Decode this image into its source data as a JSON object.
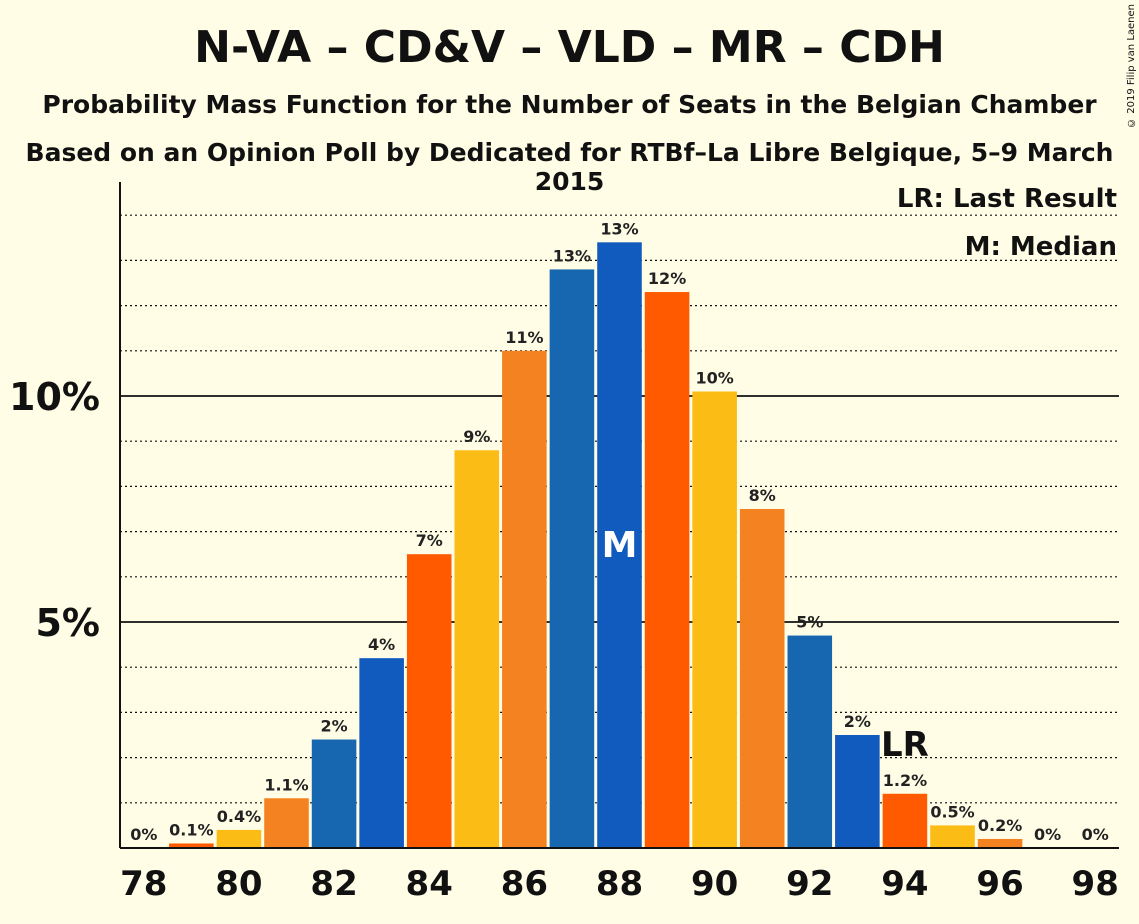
{
  "chart_data": {
    "type": "bar",
    "title": "N-VA – CD&V – VLD – MR – CDH",
    "subtitle": "Probability Mass Function for the Number of Seats in the Belgian Chamber",
    "subtitle2": "Based on an Opinion Poll by Dedicated for RTBf–La Libre Belgique, 5–9 March 2015",
    "copyright": "© 2019 Filip van Laenen",
    "legend": {
      "lr": "LR: Last Result",
      "m": "M: Median"
    },
    "x": [
      78,
      79,
      80,
      81,
      82,
      83,
      84,
      85,
      86,
      87,
      88,
      89,
      90,
      91,
      92,
      93,
      94,
      95,
      96,
      97,
      98
    ],
    "values": [
      0,
      0.1,
      0.4,
      1.1,
      2.4,
      4.2,
      6.5,
      8.8,
      11.0,
      12.8,
      13.4,
      12.3,
      10.1,
      7.5,
      4.7,
      2.5,
      1.2,
      0.5,
      0.2,
      0,
      0
    ],
    "labels": [
      "0%",
      "0.1%",
      "0.4%",
      "1.1%",
      "2%",
      "4%",
      "7%",
      "9%",
      "11%",
      "13%",
      "13%",
      "12%",
      "10%",
      "8%",
      "5%",
      "2%",
      "1.2%",
      "0.5%",
      "0.2%",
      "0%",
      "0%"
    ],
    "bar_colors": [
      "#1565C0",
      "#FF5A00",
      "#FBBC16",
      "#F58220",
      "#1667B0",
      "#125BBE",
      "#FF5A00",
      "#FBBC16",
      "#F58220",
      "#1667B0",
      "#125BBE",
      "#FF5A00",
      "#FBBC16",
      "#F58220",
      "#1667B0",
      "#125BBE",
      "#FF5A00",
      "#FBBC16",
      "#F58220",
      "#1667B0",
      "#125BBE"
    ],
    "x_ticks": [
      78,
      80,
      82,
      84,
      86,
      88,
      90,
      92,
      94,
      96,
      98
    ],
    "y_ticks": [
      {
        "value": 5,
        "label": "5%"
      },
      {
        "value": 10,
        "label": "10%"
      }
    ],
    "ylim": [
      0,
      14.7
    ],
    "median_seat": 88,
    "median_label": "M",
    "last_result_seat": 94,
    "last_result_label": "LR",
    "grid": "dotted every 1%"
  }
}
